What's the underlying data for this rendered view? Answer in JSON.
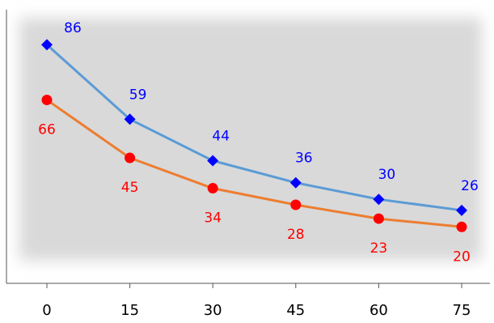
{
  "chart_data": {
    "type": "line",
    "title": "",
    "xlabel": "",
    "ylabel": "",
    "x": [
      0,
      15,
      30,
      45,
      60,
      75
    ],
    "x_tick_labels": [
      "0",
      "15",
      "30",
      "45",
      "60",
      "75"
    ],
    "ylim": [
      0,
      100
    ],
    "grid": false,
    "legend": "none",
    "series": [
      {
        "values": [
          86,
          59,
          44,
          36,
          30,
          26
        ],
        "labels": [
          "86",
          "59",
          "44",
          "36",
          "30",
          "26"
        ],
        "line_color": "#5b9bd5",
        "marker_color": "#0000ff",
        "marker": "diamond",
        "label_color": "#0000ff",
        "label_position": "above-right"
      },
      {
        "values": [
          66,
          45,
          34,
          28,
          23,
          20
        ],
        "labels": [
          "66",
          "45",
          "34",
          "28",
          "23",
          "20"
        ],
        "line_color": "#ed7d31",
        "marker_color": "#ff0000",
        "marker": "circle",
        "label_color": "#ff0000",
        "label_position": "below"
      }
    ],
    "plot_background": "#d9d9d9"
  }
}
